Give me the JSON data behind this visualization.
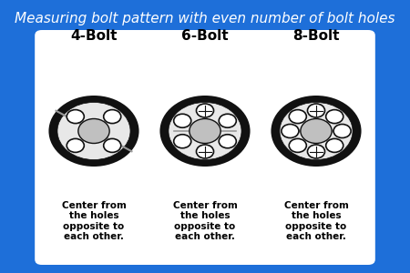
{
  "title": "Measuring bolt pattern with even number of bolt holes",
  "title_color": "#FFFFFF",
  "title_fontsize": 11,
  "bg_color": "#1E6FD9",
  "card_color": "#FFFFFF",
  "bolt_configs": [
    {
      "label": "4-Bolt",
      "n_bolts": 4,
      "line_style": "diagonal"
    },
    {
      "label": "6-Bolt",
      "n_bolts": 6,
      "line_style": "cross"
    },
    {
      "label": "8-Bolt",
      "n_bolts": 8,
      "line_style": "cross"
    }
  ],
  "caption": "Center from\nthe holes\nopposite to\neach other.",
  "outer_ring_color": "#111111",
  "inner_fill_color": "#E8E8E8",
  "hub_fill_color": "#C0C0C0",
  "bolt_hole_color": "#FFFFFF",
  "line_color": "#999999",
  "positions": [
    0.18,
    0.5,
    0.82
  ]
}
